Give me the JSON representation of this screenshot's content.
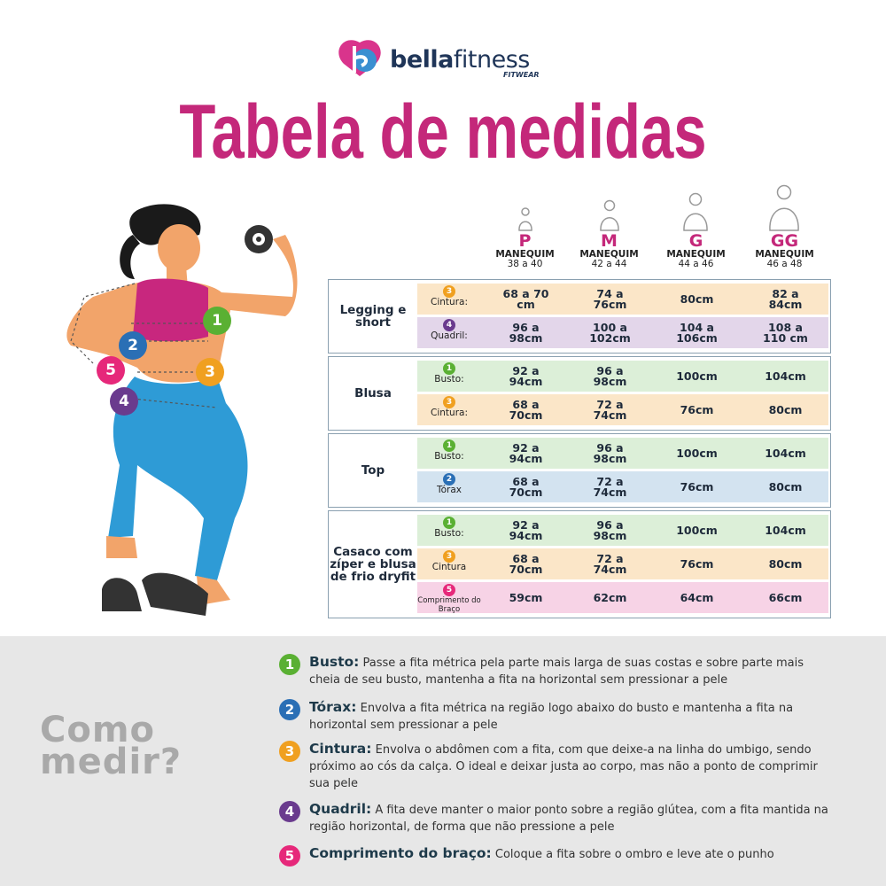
{
  "brand": {
    "name_part1": "bella",
    "name_part2": "fitness",
    "tagline": "FITWEAR"
  },
  "title": "Tabela de medidas",
  "sizes": [
    {
      "letter": "P",
      "label": "MANEQUIM",
      "range": "38 a 40"
    },
    {
      "letter": "M",
      "label": "MANEQUIM",
      "range": "42 a 44"
    },
    {
      "letter": "G",
      "label": "MANEQUIM",
      "range": "44 a 46"
    },
    {
      "letter": "GG",
      "label": "MANEQUIM",
      "range": "46 a 48"
    }
  ],
  "groups": [
    {
      "name": "Legging e short",
      "rows": [
        {
          "num": "3",
          "measure": "Cintura:",
          "values": [
            "68 a 70 cm",
            "74 a 76cm",
            "80cm",
            "82 a 84cm"
          ]
        },
        {
          "num": "4",
          "measure": "Quadril:",
          "values": [
            "96 a 98cm",
            "100 a 102cm",
            "104 a 106cm",
            "108 a 110 cm"
          ]
        }
      ]
    },
    {
      "name": "Blusa",
      "rows": [
        {
          "num": "1",
          "measure": "Busto:",
          "values": [
            "92 a 94cm",
            "96 a 98cm",
            "100cm",
            "104cm"
          ]
        },
        {
          "num": "3",
          "measure": "Cintura:",
          "values": [
            "68 a 70cm",
            "72 a 74cm",
            "76cm",
            "80cm"
          ]
        }
      ]
    },
    {
      "name": "Top",
      "rows": [
        {
          "num": "1",
          "measure": "Busto:",
          "values": [
            "92 a 94cm",
            "96 a 98cm",
            "100cm",
            "104cm"
          ]
        },
        {
          "num": "2",
          "measure": "Tórax",
          "values": [
            "68 a 70cm",
            "72 a 74cm",
            "76cm",
            "80cm"
          ]
        }
      ]
    },
    {
      "name": "Casaco com zíper e blusa de frio dryfit",
      "rows": [
        {
          "num": "1",
          "measure": "Busto:",
          "values": [
            "92 a 94cm",
            "96 a 98cm",
            "100cm",
            "104cm"
          ]
        },
        {
          "num": "3",
          "measure": "Cintura",
          "values": [
            "68 a 70cm",
            "72 a 74cm",
            "76cm",
            "80cm"
          ]
        },
        {
          "num": "5",
          "measure": "Comprimento do Braço",
          "values": [
            "59cm",
            "62cm",
            "64cm",
            "66cm"
          ]
        }
      ]
    }
  ],
  "figure_markers": [
    "1",
    "2",
    "5",
    "3",
    "4"
  ],
  "how_to": {
    "title": "Como medir?",
    "items": [
      {
        "num": "1",
        "term": "Busto:",
        "text": "Passe a fita métrica pela parte mais larga de suas costas e sobre parte mais cheia de seu busto, mantenha a fita na horizontal sem pressionar a pele"
      },
      {
        "num": "2",
        "term": "Tórax:",
        "text": "Envolva a fita métrica na região logo abaixo do busto e mantenha a fita na horizontal sem pressionar a pele"
      },
      {
        "num": "3",
        "term": "Cintura:",
        "text": "Envolva o abdômen com a fita, com que deixe-a na linha do umbigo, sendo próximo ao cós da calça. O ideal e deixar justa ao corpo, mas não a ponto de comprimir sua pele"
      },
      {
        "num": "4",
        "term": "Quadril:",
        "text": "A fita deve manter o maior ponto sobre a região glútea, com a fita mantida na região horizontal, de forma que não pressione a pele"
      },
      {
        "num": "5",
        "term": "Comprimento do braço:",
        "text": "Coloque a fita sobre o ombro e leve ate o punho"
      }
    ]
  }
}
